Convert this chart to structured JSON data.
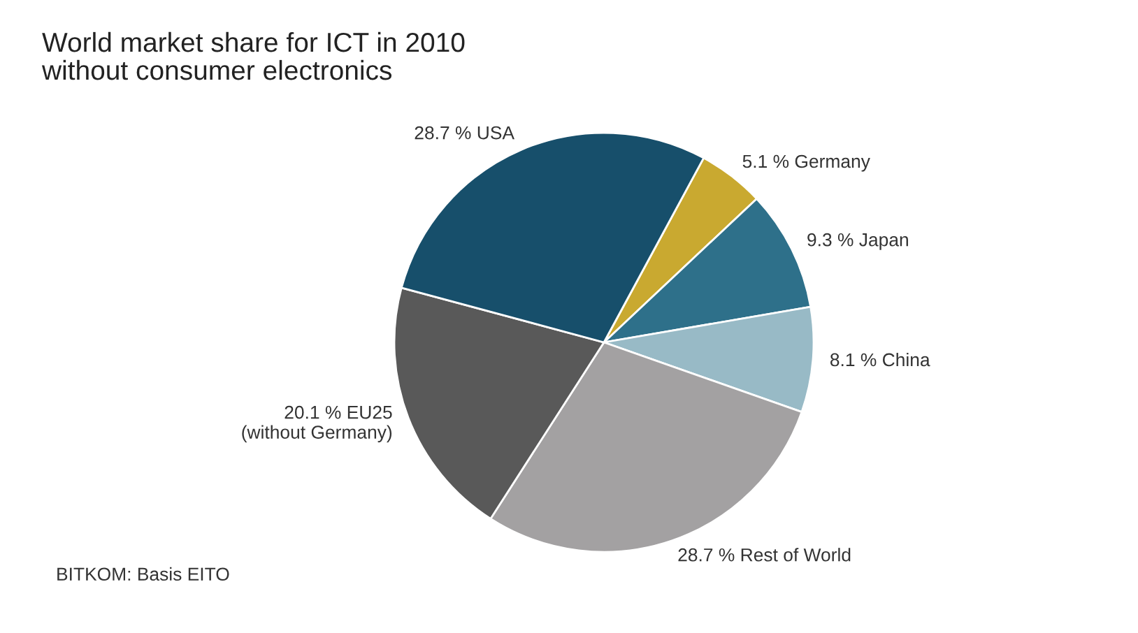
{
  "chart_data": {
    "type": "pie",
    "title": "World market share for ICT in 2010",
    "subtitle": "without consumer electronics",
    "categories": [
      "5.1 % Germany",
      "9.3 % Japan",
      "8.1 % China",
      "28.7 % Rest of World",
      "20.1 % EU25\n(without Germany)",
      "28.7 % USA"
    ],
    "values": [
      5.1,
      9.3,
      8.1,
      28.7,
      20.1,
      28.7
    ],
    "colors": [
      "#c9a930",
      "#2e708a",
      "#98bac6",
      "#a3a1a2",
      "#595959",
      "#174f6b"
    ],
    "annotations": [
      "BITKOM: Basis EITO"
    ],
    "legend": false
  }
}
